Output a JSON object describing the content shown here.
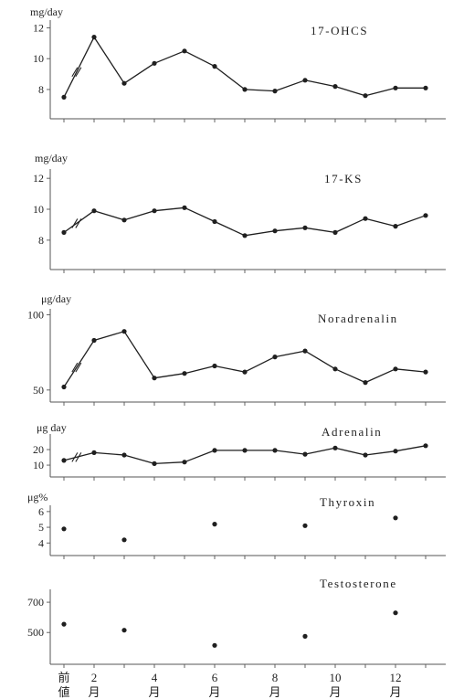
{
  "colors": {
    "ink": "#1f1f1f",
    "axis": "#555555",
    "background": "#ffffff"
  },
  "x_axis": {
    "tick_labels": [
      {
        "index": 0,
        "lines": [
          "前",
          "値"
        ]
      },
      {
        "index": 1,
        "lines": [
          "2",
          "月"
        ]
      },
      {
        "index": 3,
        "lines": [
          "4",
          "月"
        ]
      },
      {
        "index": 5,
        "lines": [
          "6",
          "月"
        ]
      },
      {
        "index": 7,
        "lines": [
          "8",
          "月"
        ]
      },
      {
        "index": 9,
        "lines": [
          "10",
          "月"
        ]
      },
      {
        "index": 11,
        "lines": [
          "12",
          "月"
        ]
      }
    ]
  },
  "chart_data": [
    {
      "type": "line",
      "title": "17-OHCS",
      "ylabel": "mg/day",
      "yticks": [
        12,
        10,
        8
      ],
      "ylim": [
        6.1,
        12.5
      ],
      "axis_break_after_first_point": true,
      "series": [
        {
          "values": [
            7.5,
            11.4,
            8.4,
            9.7,
            10.5,
            9.5,
            8.0,
            7.9,
            8.6,
            8.2,
            7.6,
            8.1,
            8.1
          ]
        }
      ]
    },
    {
      "type": "line",
      "title": "17-KS",
      "ylabel": "mg/day",
      "yticks": [
        12,
        10,
        8
      ],
      "ylim": [
        6.1,
        12.6
      ],
      "axis_break_after_first_point": true,
      "series": [
        {
          "values": [
            8.5,
            9.9,
            9.3,
            9.9,
            10.1,
            9.2,
            8.3,
            8.6,
            8.8,
            8.5,
            9.4,
            8.9,
            9.6
          ]
        }
      ]
    },
    {
      "type": "line",
      "title": "Noradrenalin",
      "ylabel": "μg/day",
      "yticks": [
        100,
        50
      ],
      "ylim": [
        42,
        104
      ],
      "axis_break_after_first_point": true,
      "series": [
        {
          "values": [
            52,
            83,
            89,
            58,
            61,
            66,
            62,
            72,
            76,
            64,
            55,
            64,
            62
          ]
        }
      ]
    },
    {
      "type": "line",
      "title": "Adrenalin",
      "ylabel": "μg day",
      "yticks": [
        20,
        10
      ],
      "ylim": [
        2.4,
        30
      ],
      "axis_break_after_first_point": true,
      "series": [
        {
          "values": [
            13,
            18,
            16.5,
            11,
            12,
            19.5,
            19.5,
            19.5,
            17,
            21,
            16.5,
            19,
            22.5
          ]
        }
      ]
    },
    {
      "type": "scatter",
      "title": "Thyroxin",
      "ylabel": "μg%",
      "yticks": [
        6,
        5,
        4
      ],
      "ylim": [
        3.2,
        6.4
      ],
      "axis_break_after_first_point": false,
      "series": [
        {
          "values": [
            4.9,
            null,
            4.2,
            null,
            null,
            5.2,
            null,
            null,
            5.1,
            null,
            null,
            5.6,
            null
          ]
        }
      ]
    },
    {
      "type": "scatter",
      "title": "Testosterone",
      "yticks": [
        700,
        500
      ],
      "ylim": [
        290,
        785
      ],
      "axis_break_after_first_point": false,
      "series": [
        {
          "values": [
            555,
            null,
            515,
            null,
            null,
            415,
            null,
            null,
            475,
            null,
            null,
            630,
            null
          ]
        }
      ]
    }
  ]
}
